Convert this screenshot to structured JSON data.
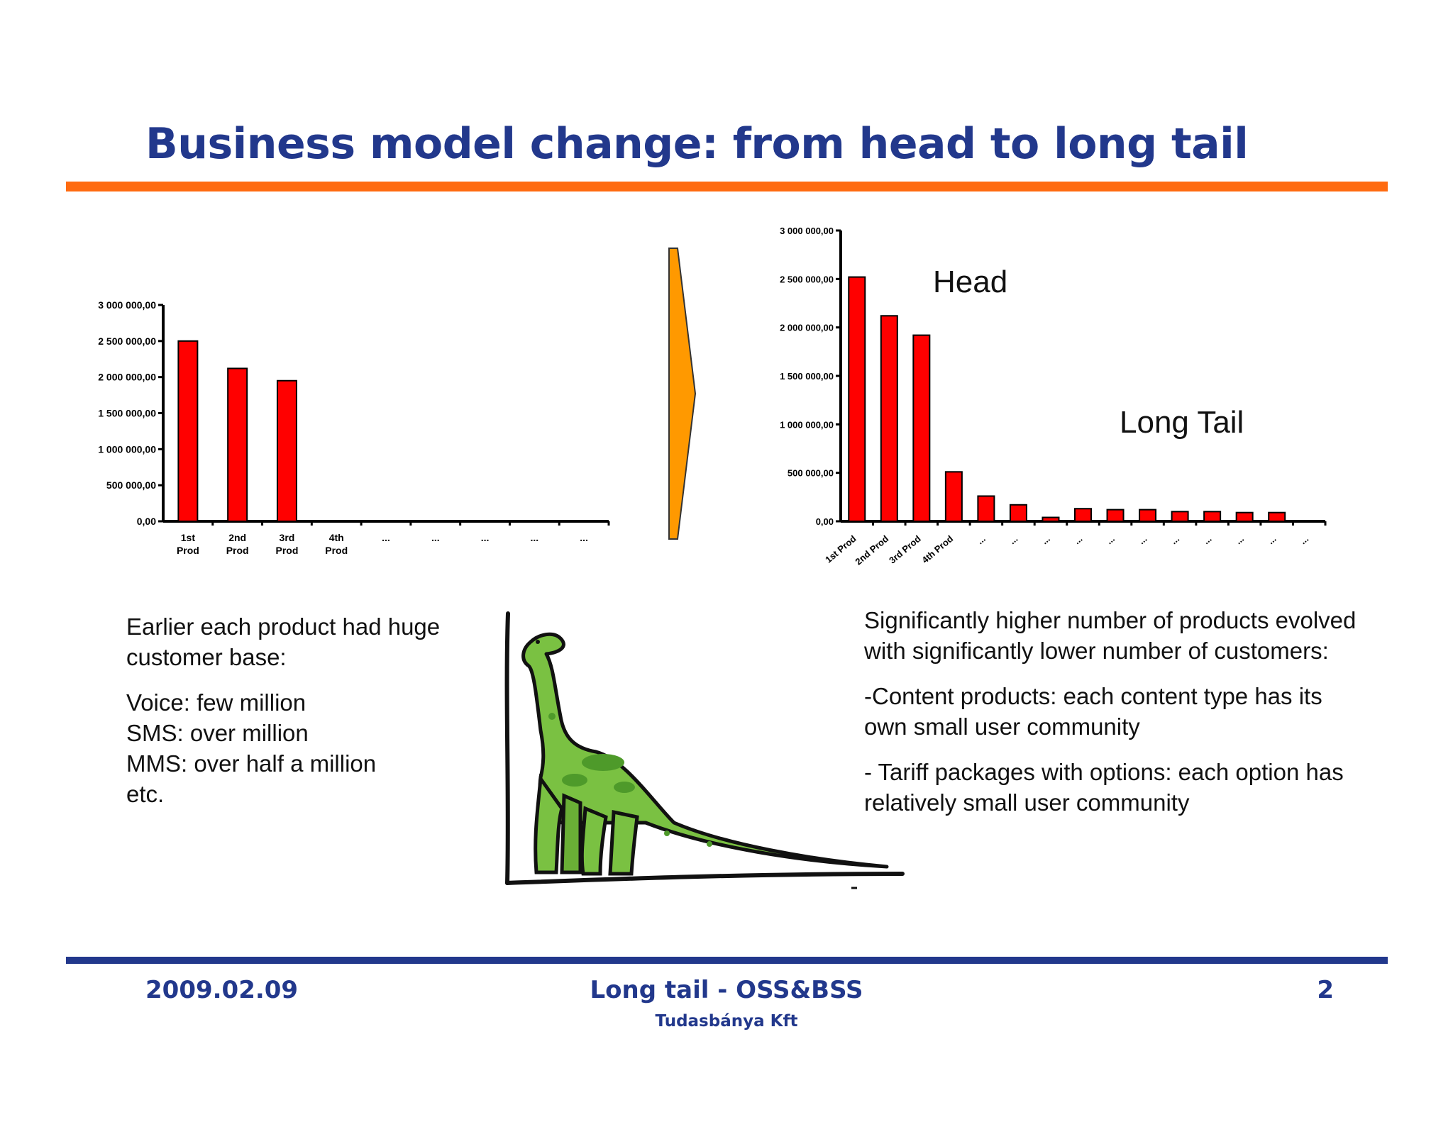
{
  "slide": {
    "title": "Business model change: from head to long tail",
    "colors": {
      "title": "#22388c",
      "accent_rule": "#ff6b10",
      "footer_rule": "#22388c",
      "bar": "#ff0000",
      "arrow": "#ff9900"
    }
  },
  "left_text": {
    "intro": "Earlier each product had huge customer base:",
    "lines": [
      "Voice: few million",
      "SMS: over million",
      "MMS: over half a million",
      "etc."
    ]
  },
  "right_text": {
    "paragraphs": [
      "Significantly higher number of products evolved with significantly lower number of customers:",
      "-Content products: each content type has its own small user community",
      "- Tariff packages with options: each option has relatively small user community"
    ]
  },
  "illustration": {
    "icon": "long-tail-dinosaur-icon"
  },
  "transition": {
    "icon": "chevron-right-arrow-icon"
  },
  "footer": {
    "date": "2009.02.09",
    "center_title": "Long tail - OSS&BSS",
    "company": "Tudasbánya Kft",
    "page_number": "2"
  },
  "chart_data": [
    {
      "type": "bar",
      "categories": [
        "1st Prod",
        "2nd Prod",
        "3rd Prod",
        "4th Prod",
        "...",
        "...",
        "...",
        "...",
        "..."
      ],
      "values": [
        2500000,
        2120000,
        1950000,
        0,
        0,
        0,
        0,
        0,
        0
      ],
      "ylim": [
        0,
        3000000
      ],
      "yticks": [
        "0,00",
        "500 000,00",
        "1 000 000,00",
        "1 500 000,00",
        "2 000 000,00",
        "2 500 000,00",
        "3 000 000,00"
      ],
      "grid": false
    },
    {
      "type": "bar",
      "categories": [
        "1st Prod",
        "2nd Prod",
        "3rd Prod",
        "4th Prod",
        "...",
        "...",
        "...",
        "...",
        "...",
        "...",
        "...",
        "...",
        "...",
        "...",
        "..."
      ],
      "values": [
        2520000,
        2120000,
        1920000,
        510000,
        260000,
        170000,
        40000,
        130000,
        120000,
        120000,
        100000,
        100000,
        90000,
        90000,
        0
      ],
      "ylim": [
        0,
        3000000
      ],
      "yticks": [
        "0,00",
        "500 000,00",
        "1 000 000,00",
        "1 500 000,00",
        "2 000 000,00",
        "2 500 000,00",
        "3 000 000,00"
      ],
      "annotations": [
        "Head",
        "Long Tail"
      ],
      "grid": false
    }
  ]
}
